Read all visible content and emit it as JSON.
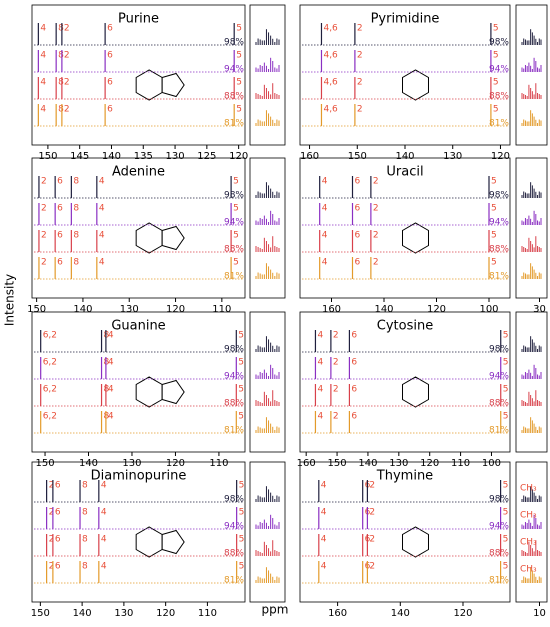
{
  "chart_data": [
    {
      "type": "spectrum",
      "title": "Purine",
      "xlim": [
        152.5,
        119
      ],
      "xticks": [
        150,
        145,
        140,
        135,
        130,
        125,
        120
      ],
      "peaks": [
        {
          "ppm": 151.5,
          "label": "4"
        },
        {
          "ppm": 148.7,
          "label": "8"
        },
        {
          "ppm": 147.8,
          "label": "2"
        },
        {
          "ppm": 141,
          "label": "6"
        },
        {
          "ppm": 120.7,
          "label": "5"
        }
      ]
    },
    {
      "type": "spectrum",
      "title": "Pyrimidine",
      "xlim": [
        162,
        118
      ],
      "xticks": [
        160,
        150,
        140,
        130,
        120
      ],
      "peaks": [
        {
          "ppm": 157.5,
          "label": "4,6"
        },
        {
          "ppm": 150.5,
          "label": "2"
        },
        {
          "ppm": 122,
          "label": "5"
        }
      ]
    },
    {
      "type": "spectrum",
      "title": "Adenine",
      "xlim": [
        151,
        105
      ],
      "xticks": [
        150,
        140,
        130,
        120,
        110
      ],
      "peaks": [
        {
          "ppm": 149.5,
          "label": "2"
        },
        {
          "ppm": 146,
          "label": "6"
        },
        {
          "ppm": 142.5,
          "label": "8"
        },
        {
          "ppm": 137,
          "label": "4"
        },
        {
          "ppm": 108,
          "label": "5"
        }
      ]
    },
    {
      "type": "spectrum",
      "title": "Uracil",
      "xlim": [
        172,
        92
      ],
      "xticks": [
        160,
        140,
        120,
        100
      ],
      "side_ticks": [
        30
      ],
      "peaks": [
        {
          "ppm": 164.5,
          "label": "4"
        },
        {
          "ppm": 152,
          "label": "6"
        },
        {
          "ppm": 145,
          "label": "2"
        },
        {
          "ppm": 100,
          "label": "5"
        }
      ]
    },
    {
      "type": "spectrum",
      "title": "Guanine",
      "xlim": [
        153,
        104
      ],
      "xticks": [
        150,
        140,
        130,
        120,
        110
      ],
      "peaks": [
        {
          "ppm": 151,
          "label": "6,2"
        },
        {
          "ppm": 137,
          "label": "8"
        },
        {
          "ppm": 136,
          "label": "4"
        },
        {
          "ppm": 106,
          "label": "5"
        }
      ]
    },
    {
      "type": "spectrum",
      "title": "Cytosine",
      "xlim": [
        162,
        94
      ],
      "xticks": [
        160,
        150,
        140,
        130,
        120,
        110,
        100
      ],
      "peaks": [
        {
          "ppm": 157,
          "label": "4"
        },
        {
          "ppm": 152,
          "label": "2"
        },
        {
          "ppm": 146,
          "label": "6"
        },
        {
          "ppm": 97,
          "label": "5"
        }
      ]
    },
    {
      "type": "spectrum",
      "title": "Diaminopurine",
      "xlim": [
        152,
        101
      ],
      "xticks": [
        150,
        140,
        130,
        120,
        110
      ],
      "peaks": [
        {
          "ppm": 148.5,
          "label": "2"
        },
        {
          "ppm": 147,
          "label": "6"
        },
        {
          "ppm": 140.5,
          "label": "8"
        },
        {
          "ppm": 136,
          "label": "4"
        },
        {
          "ppm": 103,
          "label": "5"
        }
      ]
    },
    {
      "type": "spectrum",
      "title": "Thymine",
      "xlim": [
        172,
        105
      ],
      "xticks": [
        160,
        140,
        120
      ],
      "side_ticks": [
        10
      ],
      "side_label": "CH₃",
      "peaks": [
        {
          "ppm": 166,
          "label": "4"
        },
        {
          "ppm": 152,
          "label": "6"
        },
        {
          "ppm": 150.5,
          "label": "2"
        },
        {
          "ppm": 108,
          "label": "5"
        }
      ]
    }
  ],
  "traces": [
    {
      "label": "98%",
      "color": "#1f1f3d"
    },
    {
      "label": "94%",
      "color": "#8a2fc2"
    },
    {
      "label": "88%",
      "color": "#d8404a"
    },
    {
      "label": "81%",
      "color": "#e39a2a"
    }
  ],
  "peak_label_color": "#e8503a",
  "y_label": "Intensity",
  "x_label": "ppm"
}
